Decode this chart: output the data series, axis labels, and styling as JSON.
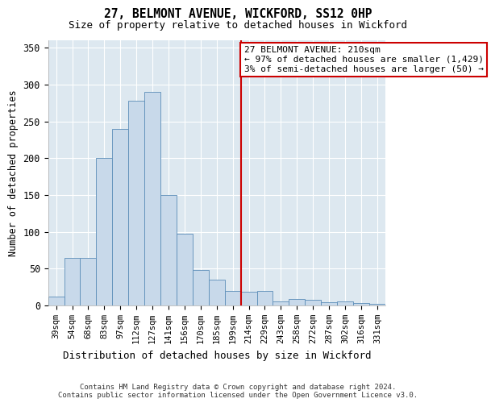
{
  "title1": "27, BELMONT AVENUE, WICKFORD, SS12 0HP",
  "title2": "Size of property relative to detached houses in Wickford",
  "xlabel": "Distribution of detached houses by size in Wickford",
  "ylabel": "Number of detached properties",
  "categories": [
    "39sqm",
    "54sqm",
    "68sqm",
    "83sqm",
    "97sqm",
    "112sqm",
    "127sqm",
    "141sqm",
    "156sqm",
    "170sqm",
    "185sqm",
    "199sqm",
    "214sqm",
    "229sqm",
    "243sqm",
    "258sqm",
    "272sqm",
    "287sqm",
    "302sqm",
    "316sqm",
    "331sqm"
  ],
  "values": [
    12,
    65,
    65,
    200,
    240,
    278,
    290,
    150,
    97,
    48,
    35,
    20,
    18,
    20,
    5,
    9,
    8,
    4,
    5,
    3,
    2
  ],
  "bar_color": "#c8d9ea",
  "bar_edge_color": "#5b8db8",
  "vline_color": "#cc0000",
  "annotation_text": "27 BELMONT AVENUE: 210sqm\n← 97% of detached houses are smaller (1,429)\n3% of semi-detached houses are larger (50) →",
  "annotation_box_color": "#ffffff",
  "annotation_border_color": "#cc0000",
  "ylim": [
    0,
    360
  ],
  "yticks": [
    0,
    50,
    100,
    150,
    200,
    250,
    300,
    350
  ],
  "bg_color": "#dde8f0",
  "grid_color": "#ffffff",
  "footnote": "Contains HM Land Registry data © Crown copyright and database right 2024.\nContains public sector information licensed under the Open Government Licence v3.0."
}
